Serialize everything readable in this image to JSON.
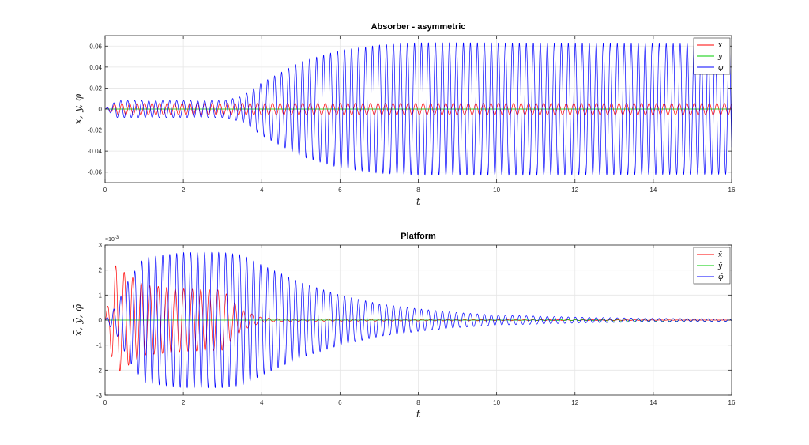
{
  "chart_data": [
    {
      "type": "line",
      "title": "Absorber - asymmetric",
      "xlabel": "t",
      "ylabel": "x, y, φ",
      "xlim": [
        0,
        16
      ],
      "ylim": [
        -0.07,
        0.07
      ],
      "xticks": [
        0,
        2,
        4,
        6,
        8,
        10,
        12,
        14,
        16
      ],
      "xtick_labels": [
        "0",
        "2",
        "4",
        "6",
        "8",
        "10",
        "12",
        "14",
        "16"
      ],
      "yticks": [
        -0.06,
        -0.04,
        -0.02,
        0,
        0.02,
        0.04,
        0.06
      ],
      "ytick_labels": [
        "-0.06",
        "-0.04",
        "-0.02",
        "0",
        "0.02",
        "0.04",
        "0.06"
      ],
      "grid": true,
      "legend_position": "top-right",
      "series": [
        {
          "name": "x",
          "color": "#ff0000",
          "wave": {
            "frequency_hz": 5.2,
            "envelope": {
              "t": [
                0,
                0.3,
                16
              ],
              "a": [
                0,
                0.0055,
                0.0055
              ]
            }
          }
        },
        {
          "name": "y",
          "color": "#00cc00",
          "wave": {
            "frequency_hz": 5.2,
            "envelope": {
              "t": [
                0,
                16
              ],
              "a": [
                0,
                0
              ]
            }
          }
        },
        {
          "name": "φ",
          "color": "#0000ff",
          "wave": {
            "frequency_hz": 5.6,
            "envelope": {
              "t": [
                0,
                0.3,
                1,
                2,
                3,
                3.5,
                4,
                5,
                6,
                7,
                8,
                9,
                16
              ],
              "a": [
                0,
                0.008,
                0.008,
                0.008,
                0.008,
                0.012,
                0.025,
                0.045,
                0.056,
                0.061,
                0.063,
                0.063,
                0.062
              ]
            }
          }
        }
      ]
    },
    {
      "type": "line",
      "title": "Platform",
      "xlabel": "t",
      "ylabel": "x̄, ȳ, φ̄",
      "y_exponent_label": "×10",
      "y_exponent": "-3",
      "xlim": [
        0,
        16
      ],
      "ylim": [
        -3,
        3
      ],
      "xticks": [
        0,
        2,
        4,
        6,
        8,
        10,
        12,
        14,
        16
      ],
      "xtick_labels": [
        "0",
        "2",
        "4",
        "6",
        "8",
        "10",
        "12",
        "14",
        "16"
      ],
      "yticks": [
        -3,
        -2,
        -1,
        0,
        1,
        2,
        3
      ],
      "ytick_labels": [
        "-3",
        "-2",
        "-1",
        "0",
        "1",
        "2",
        "3"
      ],
      "grid": true,
      "legend_position": "top-right",
      "series": [
        {
          "name": "x̄",
          "color": "#ff0000",
          "wave": {
            "frequency_hz": 4.6,
            "envelope": {
              "t": [
                0,
                0.25,
                0.5,
                1,
                2,
                3,
                3.5,
                4,
                4.5,
                16
              ],
              "a": [
                0,
                2.2,
                1.9,
                1.4,
                1.25,
                1.2,
                0.4,
                0.1,
                0.05,
                0.0
              ]
            }
          }
        },
        {
          "name": "ȳ",
          "color": "#00cc00",
          "wave": {
            "frequency_hz": 5.6,
            "envelope": {
              "t": [
                0,
                10,
                12,
                14,
                16
              ],
              "a": [
                0,
                0,
                0.02,
                0.05,
                0.05
              ]
            }
          }
        },
        {
          "name": "φ̄",
          "color": "#0000ff",
          "wave": {
            "frequency_hz": 5.6,
            "envelope": {
              "t": [
                0,
                0.3,
                0.6,
                1,
                2,
                3,
                3.5,
                4,
                5,
                6,
                7,
                8,
                9,
                10,
                12,
                14,
                16
              ],
              "a": [
                0,
                0.6,
                1.6,
                2.5,
                2.7,
                2.7,
                2.6,
                2.2,
                1.5,
                1.0,
                0.65,
                0.45,
                0.3,
                0.2,
                0.12,
                0.07,
                0.05
              ]
            }
          }
        }
      ]
    }
  ]
}
